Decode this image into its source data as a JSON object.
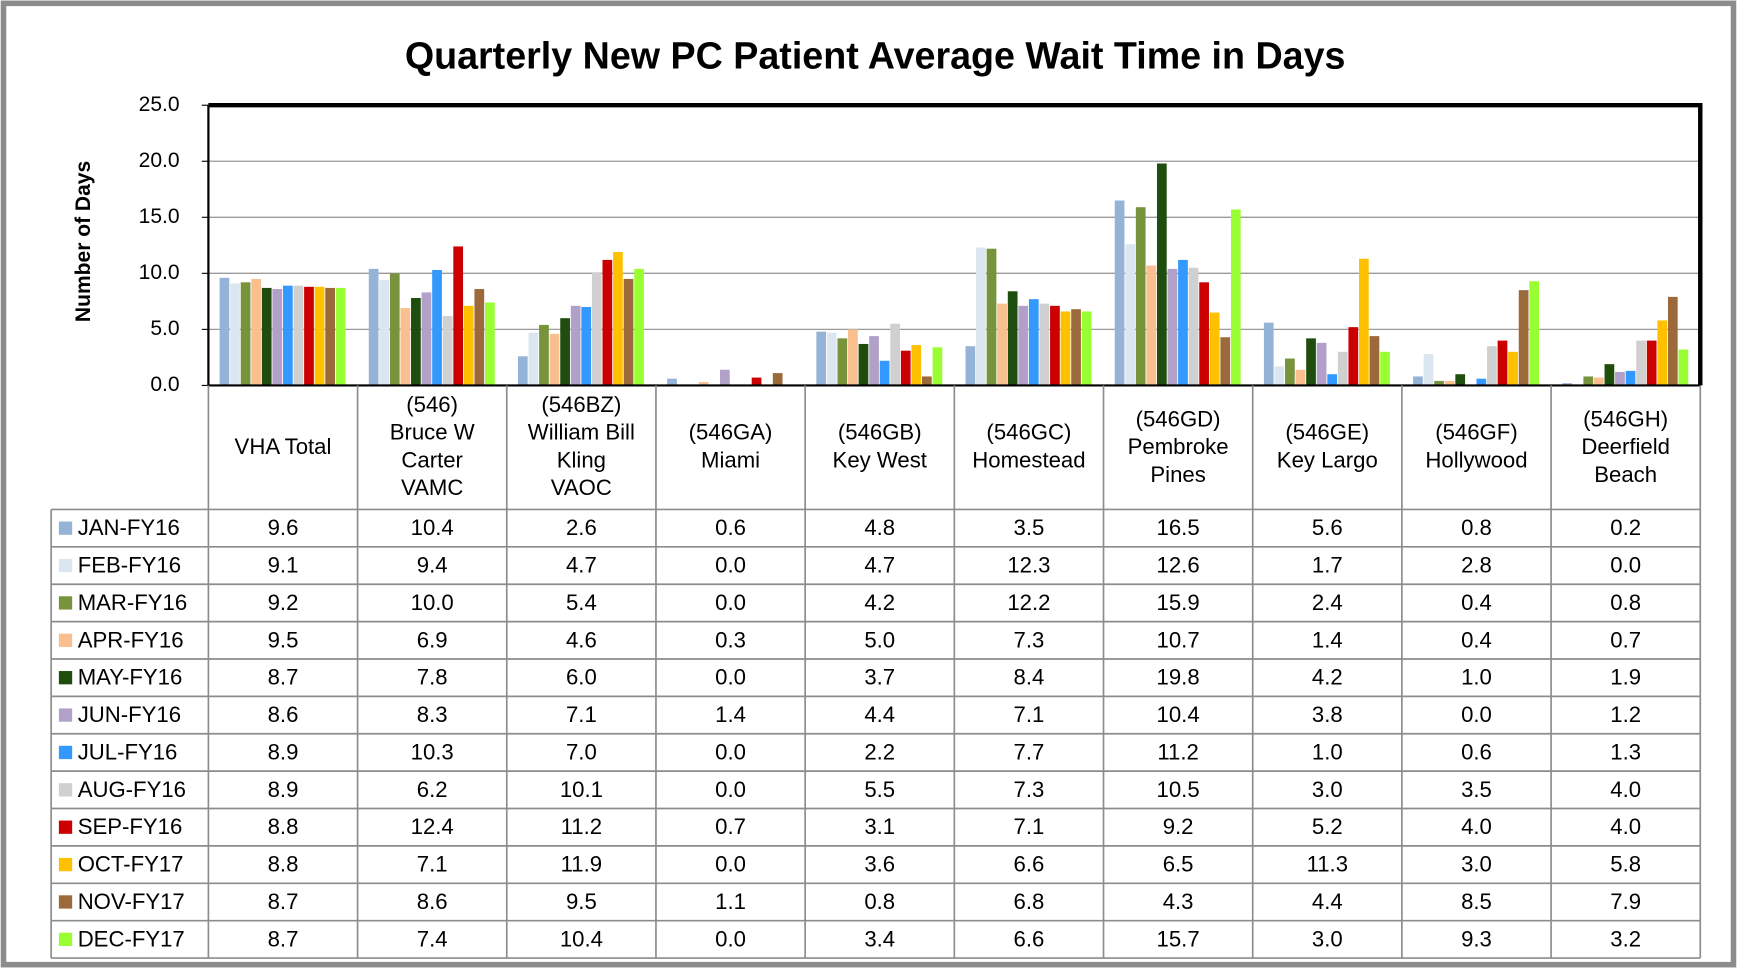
{
  "chart_data": {
    "type": "bar",
    "title": "Quarterly New PC Patient Average Wait Time in Days",
    "y_label": "Number of Days",
    "categories": [
      "VHA Total",
      "(546)\nBruce W\nCarter\nVAMC",
      "(546BZ)\nWilliam Bill\nKling\nVAOC",
      "(546GA)\nMiami",
      "(546GB)\nKey West",
      "(546GC)\nHomestead",
      "(546GD)\nPembroke\nPines",
      "(546GE)\nKey Largo",
      "(546GF)\nHollywood",
      "(546GH)\nDeerfield\nBeach"
    ],
    "ylim": [
      0,
      25
    ],
    "yticks": [
      {
        "value": 0,
        "label": "0.0"
      },
      {
        "value": 5,
        "label": "5.0"
      },
      {
        "value": 10,
        "label": "10.0"
      },
      {
        "value": 15,
        "label": "15.0"
      },
      {
        "value": 20,
        "label": "20.0"
      },
      {
        "value": 25,
        "label": "25.0"
      }
    ],
    "grid": true,
    "series": [
      {
        "name": "JAN-FY16",
        "color": "#95b3d7",
        "values": [
          9.6,
          10.4,
          2.6,
          0.6,
          4.8,
          3.5,
          16.5,
          5.6,
          0.8,
          0.2
        ],
        "value_labels": [
          "9.6",
          "10.4",
          "2.6",
          "0.6",
          "4.8",
          "3.5",
          "16.5",
          "5.6",
          "0.8",
          "0.2"
        ]
      },
      {
        "name": "FEB-FY16",
        "color": "#dce6f1",
        "values": [
          9.1,
          9.4,
          4.7,
          0.0,
          4.7,
          12.3,
          12.6,
          1.7,
          2.8,
          0.0
        ],
        "value_labels": [
          "9.1",
          "9.4",
          "4.7",
          "0.0",
          "4.7",
          "12.3",
          "12.6",
          "1.7",
          "2.8",
          "0.0"
        ]
      },
      {
        "name": "MAR-FY16",
        "color": "#77933c",
        "values": [
          9.2,
          10.0,
          5.4,
          0.0,
          4.2,
          12.2,
          15.9,
          2.4,
          0.4,
          0.8
        ],
        "value_labels": [
          "9.2",
          "10.0",
          "5.4",
          "0.0",
          "4.2",
          "12.2",
          "15.9",
          "2.4",
          "0.4",
          "0.8"
        ]
      },
      {
        "name": "APR-FY16",
        "color": "#fabf8f",
        "values": [
          9.5,
          6.9,
          4.6,
          0.3,
          5.0,
          7.3,
          10.7,
          1.4,
          0.4,
          0.7
        ],
        "value_labels": [
          "9.5",
          "6.9",
          "4.6",
          "0.3",
          "5.0",
          "7.3",
          "10.7",
          "1.4",
          "0.4",
          "0.7"
        ]
      },
      {
        "name": "MAY-FY16",
        "color": "#1e4d0e",
        "values": [
          8.7,
          7.8,
          6.0,
          0.0,
          3.7,
          8.4,
          19.8,
          4.2,
          1.0,
          1.9
        ],
        "value_labels": [
          "8.7",
          "7.8",
          "6.0",
          "0.0",
          "3.7",
          "8.4",
          "19.8",
          "4.2",
          "1.0",
          "1.9"
        ]
      },
      {
        "name": "JUN-FY16",
        "color": "#b1a0c7",
        "values": [
          8.6,
          8.3,
          7.1,
          1.4,
          4.4,
          7.1,
          10.4,
          3.8,
          0.0,
          1.2
        ],
        "value_labels": [
          "8.6",
          "8.3",
          "7.1",
          "1.4",
          "4.4",
          "7.1",
          "10.4",
          "3.8",
          "0.0",
          "1.2"
        ]
      },
      {
        "name": "JUL-FY16",
        "color": "#3399ff",
        "values": [
          8.9,
          10.3,
          7.0,
          0.0,
          2.2,
          7.7,
          11.2,
          1.0,
          0.6,
          1.3
        ],
        "value_labels": [
          "8.9",
          "10.3",
          "7.0",
          "0.0",
          "2.2",
          "7.7",
          "11.2",
          "1.0",
          "0.6",
          "1.3"
        ]
      },
      {
        "name": "AUG-FY16",
        "color": "#d0d0d0",
        "values": [
          8.9,
          6.2,
          10.1,
          0.0,
          5.5,
          7.3,
          10.5,
          3.0,
          3.5,
          4.0
        ],
        "value_labels": [
          "8.9",
          "6.2",
          "10.1",
          "0.0",
          "5.5",
          "7.3",
          "10.5",
          "3.0",
          "3.5",
          "4.0"
        ]
      },
      {
        "name": "SEP-FY16",
        "color": "#cc0000",
        "values": [
          8.8,
          12.4,
          11.2,
          0.7,
          3.1,
          7.1,
          9.2,
          5.2,
          4.0,
          4.0
        ],
        "value_labels": [
          "8.8",
          "12.4",
          "11.2",
          "0.7",
          "3.1",
          "7.1",
          "9.2",
          "5.2",
          "4.0",
          "4.0"
        ]
      },
      {
        "name": "OCT-FY17",
        "color": "#ffc000",
        "values": [
          8.8,
          7.1,
          11.9,
          0.0,
          3.6,
          6.6,
          6.5,
          11.3,
          3.0,
          5.8
        ],
        "value_labels": [
          "8.8",
          "7.1",
          "11.9",
          "0.0",
          "3.6",
          "6.6",
          "6.5",
          "11.3",
          "3.0",
          "5.8"
        ]
      },
      {
        "name": "NOV-FY17",
        "color": "#9c6a3a",
        "values": [
          8.7,
          8.6,
          9.5,
          1.1,
          0.8,
          6.8,
          4.3,
          4.4,
          8.5,
          7.9
        ],
        "value_labels": [
          "8.7",
          "8.6",
          "9.5",
          "1.1",
          "0.8",
          "6.8",
          "4.3",
          "4.4",
          "8.5",
          "7.9"
        ]
      },
      {
        "name": "DEC-FY17",
        "color": "#99ff33",
        "values": [
          8.7,
          7.4,
          10.4,
          0.0,
          3.4,
          6.6,
          15.7,
          3.0,
          9.3,
          3.2
        ],
        "value_labels": [
          "8.7",
          "7.4",
          "10.4",
          "0.0",
          "3.4",
          "6.6",
          "15.7",
          "3.0",
          "9.3",
          "3.2"
        ]
      }
    ]
  }
}
